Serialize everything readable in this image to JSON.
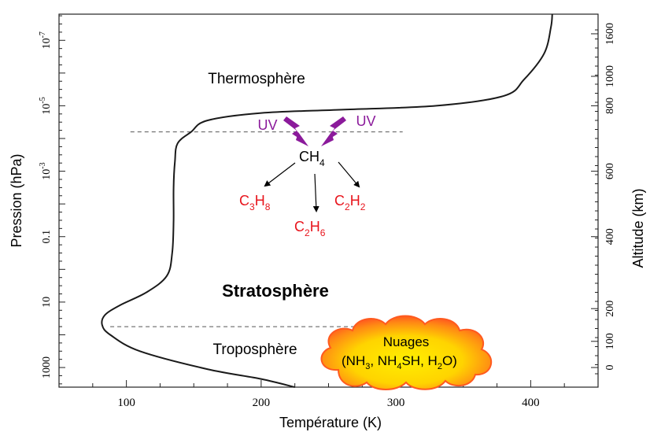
{
  "axes": {
    "xlabel": "Température (K)",
    "ylabel_left": "Pression (hPa)",
    "ylabel_right": "Altitude (km)",
    "x_ticks": [
      "100",
      "200",
      "300",
      "400"
    ],
    "x_tick_values": [
      100,
      200,
      300,
      400
    ],
    "xlim": [
      50,
      450
    ],
    "pressure_ticks": [
      {
        "base": "10",
        "exp": "-7",
        "log10": -7
      },
      {
        "base": "10",
        "exp": "-5",
        "log10": -5
      },
      {
        "base": "10",
        "exp": "-3",
        "log10": -3
      },
      {
        "base": "0.1",
        "exp": "",
        "log10": -1
      },
      {
        "base": "10",
        "exp": "",
        "log10": 1
      },
      {
        "base": "1000",
        "exp": "",
        "log10": 3
      }
    ],
    "pressure_log10_range": [
      -7.8,
      3.6
    ],
    "altitude_ticks": [
      "0",
      "100",
      "200",
      "400",
      "600",
      "800",
      "1000",
      "1600"
    ],
    "altitude_tick_values": [
      0,
      100,
      200,
      400,
      600,
      800,
      1000,
      1600
    ],
    "altitude_tick_pressure_log10": [
      3.0,
      2.2,
      1.2,
      -1.0,
      -3.0,
      -5.0,
      -5.9,
      -7.2
    ]
  },
  "layers": {
    "thermosphere": "Thermosphère",
    "stratosphere": "Stratosphère",
    "troposphere": "Troposphère"
  },
  "photochemistry": {
    "uv_left": "UV",
    "uv_right": "UV",
    "parent": {
      "main": "CH",
      "sub": "4"
    },
    "products": [
      {
        "parts": [
          {
            "t": "C",
            "s": "3"
          },
          {
            "t": "H",
            "s": "8"
          }
        ]
      },
      {
        "parts": [
          {
            "t": "C",
            "s": "2"
          },
          {
            "t": "H",
            "s": "6"
          }
        ]
      },
      {
        "parts": [
          {
            "t": "C",
            "s": "2"
          },
          {
            "t": "H",
            "s": "2"
          }
        ]
      }
    ],
    "uv_color": "#8b1a9b",
    "product_color": "#e8141c"
  },
  "clouds": {
    "title": "Nuages",
    "line2": [
      {
        "t": "(NH",
        "s": "3"
      },
      {
        "t": ", NH",
        "s": "4"
      },
      {
        "t": "SH, H",
        "s": "2"
      },
      {
        "t": "O)",
        "s": ""
      }
    ],
    "color_outer": "#ff5a1f",
    "color_inner": "#ffe600"
  },
  "boundaries": {
    "homopause_log10": -4.2,
    "tropopause_log10": 1.75
  },
  "chart_data": {
    "type": "line",
    "xlabel": "Température (K)",
    "ylabel": "Pression (hPa)",
    "y_scale": "log",
    "xlim": [
      50,
      450
    ],
    "ylim_log10": [
      3.6,
      -7.8
    ],
    "series": [
      {
        "x": [
          225,
          200,
          160,
          110,
          88,
          82,
          84,
          95,
          115,
          130,
          134,
          135,
          135,
          136,
          138,
          148,
          160,
          200,
          260,
          330,
          380,
          395,
          410,
          415,
          416
        ],
        "y_log10": [
          3.6,
          3.35,
          3.05,
          2.5,
          2.0,
          1.7,
          1.4,
          1.1,
          0.7,
          0.2,
          -0.5,
          -1.5,
          -2.5,
          -3.3,
          -3.85,
          -4.2,
          -4.55,
          -4.78,
          -4.88,
          -5.0,
          -5.3,
          -5.8,
          -6.6,
          -7.4,
          -7.8
        ]
      }
    ]
  }
}
